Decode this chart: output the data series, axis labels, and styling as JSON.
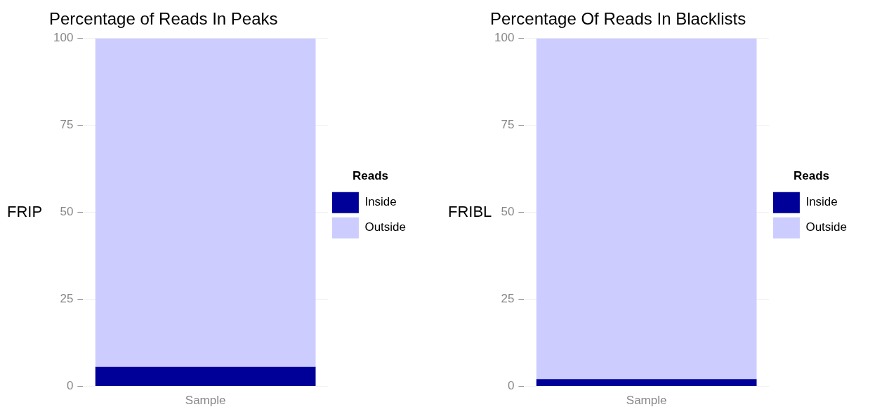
{
  "chart_data": [
    {
      "type": "bar",
      "title": "Percentage of Reads In Peaks",
      "ylabel": "FRIP",
      "legend_title": "Reads",
      "categories": [
        "Sample"
      ],
      "stacked": true,
      "series": [
        {
          "name": "Inside",
          "color": "#000099",
          "values": [
            5.6
          ]
        },
        {
          "name": "Outside",
          "color": "#ccccff",
          "values": [
            94.4
          ]
        }
      ],
      "ylim": [
        0,
        100
      ],
      "yticks": [
        0,
        25,
        50,
        75,
        100
      ],
      "grid": "y",
      "legend": "right"
    },
    {
      "type": "bar",
      "title": "Percentage Of Reads In Blacklists",
      "ylabel": "FRIBL",
      "legend_title": "Reads",
      "categories": [
        "Sample"
      ],
      "stacked": true,
      "series": [
        {
          "name": "Inside",
          "color": "#000099",
          "values": [
            2.1
          ]
        },
        {
          "name": "Outside",
          "color": "#ccccff",
          "values": [
            97.9
          ]
        }
      ],
      "ylim": [
        0,
        100
      ],
      "yticks": [
        0,
        25,
        50,
        75,
        100
      ],
      "grid": "y",
      "legend": "right"
    }
  ]
}
